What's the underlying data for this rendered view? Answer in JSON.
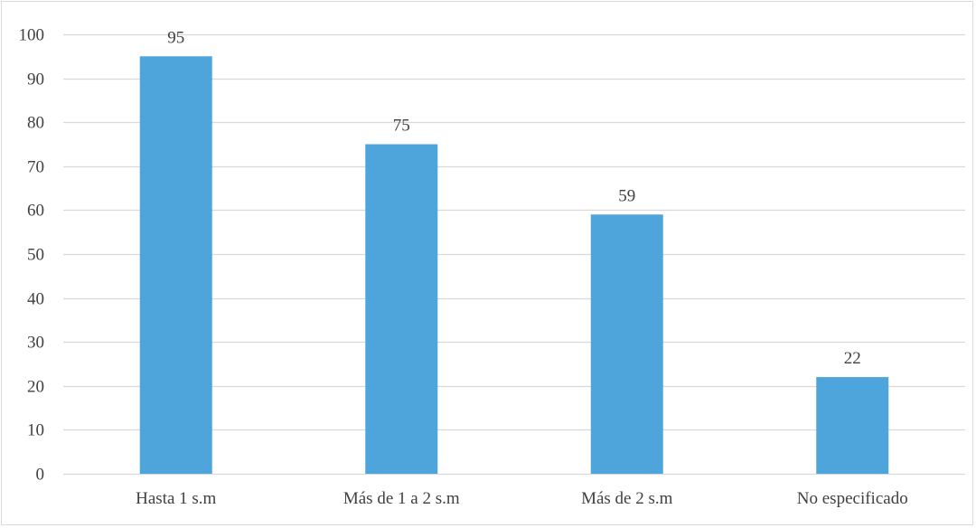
{
  "chart_data": {
    "type": "bar",
    "title": "",
    "xlabel": "",
    "ylabel": "",
    "categories": [
      "Hasta 1 s.m",
      "Más de 1 a 2 s.m",
      "Más de 2 s.m",
      "No especificado"
    ],
    "values": [
      95,
      75,
      59,
      22
    ],
    "data_labels": [
      "95",
      "75",
      "59",
      "22"
    ],
    "ylim": [
      0,
      100
    ],
    "yticks": [
      0,
      10,
      20,
      30,
      40,
      50,
      60,
      70,
      80,
      90,
      100
    ],
    "ytick_labels": [
      "0",
      "10",
      "20",
      "30",
      "40",
      "50",
      "60",
      "70",
      "80",
      "90",
      "100"
    ],
    "grid": true,
    "legend": "none",
    "colors": {
      "bar": "#4EA5DB",
      "grid": "#d9d9d9",
      "axis": "#d9d9d9",
      "text": "#404040"
    }
  }
}
